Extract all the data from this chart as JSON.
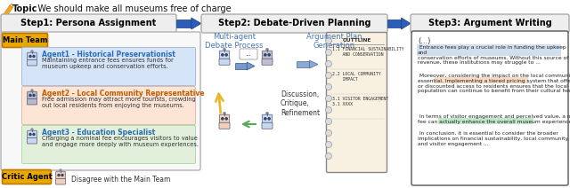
{
  "bg_color": "#ffffff",
  "topic_text": ": We should make all museums free of charge",
  "topic_bold": "Topic",
  "step1_title": "Step1: Persona Assignment",
  "step2_title": "Step2: Debate-Driven Planning",
  "step3_title": "Step3: Argument Writing",
  "main_team_label": "Main Team",
  "critic_agent_label": "Critic Agent",
  "agent1_name": "Agent1 - Historical Preservationist",
  "agent1_text": "Maintaining entrance fees ensures funds for\nmuseum upkeep and conservation efforts.",
  "agent1_bg": "#d6e4f7",
  "agent1_name_color": "#2a6db5",
  "agent2_name": "Agent2 - Local Community Representative",
  "agent2_text": "Free admission may attract more tourists, crowding\nout local residents from enjoying the museums.",
  "agent2_bg": "#fce5d4",
  "agent2_name_color": "#c05a00",
  "agent3_name": "Agent3 - Education Specialist",
  "agent3_text": "Charging a nominal fee encourages visitors to value\nand engage more deeply with museum experiences.",
  "agent3_bg": "#e2efda",
  "agent3_name_color": "#2a6db5",
  "critic_text": "Disagree with the Main Team",
  "debate_label1": "Multi-agent\nDebate Process",
  "debate_label2": "Argument Plan\nGeneration",
  "debate_sublabel": "Discussion,\nCritique,\nRefinement",
  "outline_title": "OUTTLINE",
  "arg_ellipsis": "(...)",
  "arg_para1": " Entrance fees play a crucial role in funding the upkeep and\nconservation efforts of museums. Without this source of\nrevenue, these institutions may struggle to ...",
  "arg_para2": " Moreover, considering the impact on the local community is\nessential. Implementing a tiered pricing system that offers free\nor discounted access to residents ensures that the local\npopulation can continue to benefit from their cultural heritage...",
  "arg_para3": " In terms of visitor engagement and perceived value, a nominal\nfee can actually enhance the overall museum experience...",
  "arg_para4": " In conclusion, it is essential to consider the broader\nimplications on financial sustainability, local community impact,\nand visitor engagement ...",
  "main_team_box_color": "#e8a800",
  "critic_box_color": "#e8a800",
  "arrow_color": "#2b5eb8",
  "highlight1_color": "#aac4e0",
  "highlight2_color": "#f5c9a0",
  "highlight3_color": "#90d4a0",
  "outline_bg": "#f5f0e8"
}
